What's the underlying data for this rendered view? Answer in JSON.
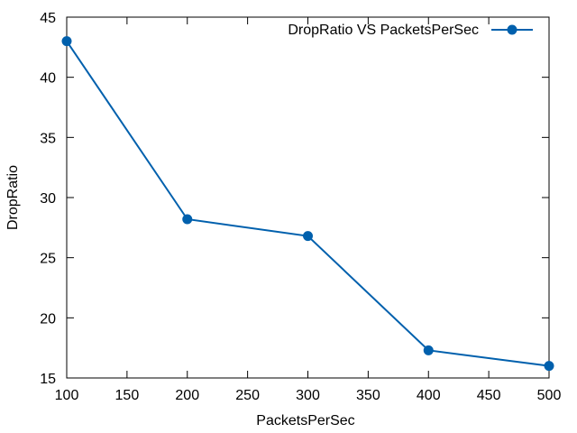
{
  "chart_data": {
    "type": "line",
    "xlabel": "PacketsPerSec",
    "ylabel": "DropRatio",
    "xlim": [
      100,
      500
    ],
    "ylim": [
      15,
      45
    ],
    "xticks": [
      100,
      150,
      200,
      250,
      300,
      350,
      400,
      450,
      500
    ],
    "yticks": [
      15,
      20,
      25,
      30,
      35,
      40,
      45
    ],
    "grid": false,
    "legend_position": "top-right",
    "series": [
      {
        "name": "DropRatio VS PacketsPerSec",
        "color": "#0060ad",
        "marker": "circle",
        "x": [
          100,
          200,
          300,
          400,
          500
        ],
        "y": [
          43.0,
          28.2,
          26.8,
          17.3,
          16.0
        ]
      }
    ]
  }
}
